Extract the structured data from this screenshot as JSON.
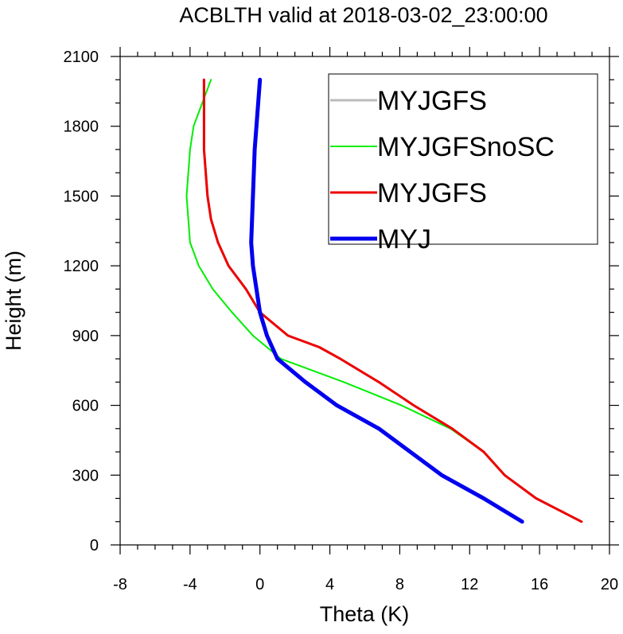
{
  "chart_data": {
    "type": "line",
    "title": "ACBLTH valid at 2018-03-02_23:00:00",
    "xlabel": "Theta (K)",
    "ylabel": "Height (m)",
    "xlim": [
      -8,
      20
    ],
    "ylim": [
      0,
      2100
    ],
    "xticks": [
      -8,
      -4,
      0,
      4,
      8,
      12,
      16,
      20
    ],
    "yticks": [
      0,
      300,
      600,
      900,
      1200,
      1500,
      1800,
      2100
    ],
    "xminor_step": 1,
    "yminor_step": 100,
    "grid": false,
    "legend_position": "top-right",
    "series": [
      {
        "name": "MYJGFS",
        "color": "#bbbbbb",
        "width": 3,
        "points": [
          [
            18.4,
            100
          ],
          [
            15.8,
            200
          ],
          [
            14.0,
            300
          ],
          [
            12.8,
            400
          ],
          [
            11.0,
            500
          ],
          [
            8.8,
            600
          ],
          [
            6.8,
            700
          ],
          [
            4.6,
            800
          ],
          [
            3.4,
            850
          ],
          [
            1.6,
            900
          ],
          [
            0.0,
            1000
          ],
          [
            -0.8,
            1100
          ],
          [
            -1.8,
            1200
          ],
          [
            -2.4,
            1300
          ],
          [
            -2.8,
            1400
          ],
          [
            -3.0,
            1500
          ],
          [
            -3.1,
            1600
          ],
          [
            -3.2,
            1700
          ],
          [
            -3.2,
            1800
          ],
          [
            -3.2,
            1900
          ],
          [
            -3.2,
            2000
          ]
        ]
      },
      {
        "name": "MYJGFSnoSC",
        "color": "#00ee00",
        "width": 2,
        "points": [
          [
            18.4,
            100
          ],
          [
            15.8,
            200
          ],
          [
            14.0,
            300
          ],
          [
            12.8,
            400
          ],
          [
            10.9,
            500
          ],
          [
            8.1,
            600
          ],
          [
            4.8,
            700
          ],
          [
            1.2,
            800
          ],
          [
            -0.4,
            900
          ],
          [
            -1.6,
            1000
          ],
          [
            -2.7,
            1100
          ],
          [
            -3.5,
            1200
          ],
          [
            -4.0,
            1300
          ],
          [
            -4.2,
            1500
          ],
          [
            -4.0,
            1700
          ],
          [
            -3.8,
            1800
          ],
          [
            -3.3,
            1900
          ],
          [
            -2.8,
            2000
          ]
        ]
      },
      {
        "name": "MYJGFS",
        "color": "#ee0000",
        "width": 3,
        "points": [
          [
            18.4,
            100
          ],
          [
            15.8,
            200
          ],
          [
            14.0,
            300
          ],
          [
            12.8,
            400
          ],
          [
            11.0,
            500
          ],
          [
            8.8,
            600
          ],
          [
            6.8,
            700
          ],
          [
            4.6,
            800
          ],
          [
            3.4,
            850
          ],
          [
            1.6,
            900
          ],
          [
            0.0,
            1000
          ],
          [
            -0.8,
            1100
          ],
          [
            -1.8,
            1200
          ],
          [
            -2.4,
            1300
          ],
          [
            -2.8,
            1400
          ],
          [
            -3.0,
            1500
          ],
          [
            -3.1,
            1600
          ],
          [
            -3.2,
            1700
          ],
          [
            -3.2,
            1800
          ],
          [
            -3.2,
            1900
          ],
          [
            -3.2,
            2000
          ]
        ]
      },
      {
        "name": "MYJ",
        "color": "#0000ee",
        "width": 5,
        "points": [
          [
            15.0,
            100
          ],
          [
            12.8,
            200
          ],
          [
            10.4,
            300
          ],
          [
            8.6,
            400
          ],
          [
            6.8,
            500
          ],
          [
            4.4,
            600
          ],
          [
            2.6,
            700
          ],
          [
            1.8,
            750
          ],
          [
            1.0,
            800
          ],
          [
            0.4,
            900
          ],
          [
            0.0,
            1000
          ],
          [
            -0.2,
            1100
          ],
          [
            -0.4,
            1200
          ],
          [
            -0.5,
            1300
          ],
          [
            -0.4,
            1500
          ],
          [
            -0.3,
            1700
          ],
          [
            -0.2,
            1800
          ],
          [
            -0.1,
            1900
          ],
          [
            0.0,
            2000
          ]
        ]
      }
    ]
  }
}
